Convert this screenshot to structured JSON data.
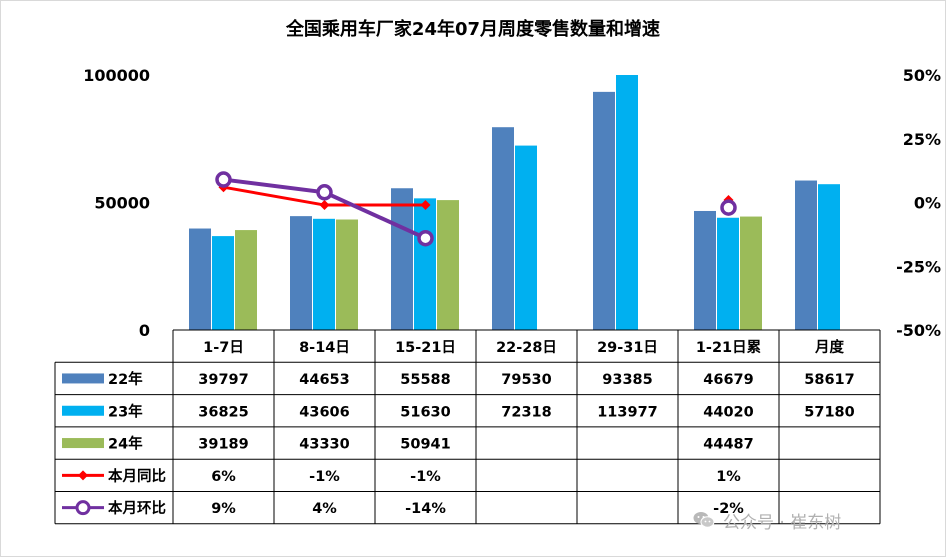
{
  "chart_data": {
    "type": "bar",
    "title": "全国乘用车厂家24年07月周度零售数量和增速",
    "categories": [
      "1-7日",
      "8-14日",
      "15-21日",
      "22-28日",
      "29-31日",
      "1-21日累",
      "月度"
    ],
    "series": [
      {
        "name": "22年",
        "kind": "bar",
        "color": "#4f81bd",
        "values": [
          39797,
          44653,
          55588,
          79530,
          93385,
          46679,
          58617
        ],
        "labels": [
          "39797",
          "44653",
          "55588",
          "79530",
          "93385",
          "46679",
          "58617"
        ]
      },
      {
        "name": "23年",
        "kind": "bar",
        "color": "#00b0f0",
        "values": [
          36825,
          43606,
          51630,
          72318,
          113977,
          44020,
          57180
        ],
        "labels": [
          "36825",
          "43606",
          "51630",
          "72318",
          "113977",
          "44020",
          "57180"
        ]
      },
      {
        "name": "24年",
        "kind": "bar",
        "color": "#9bbb59",
        "values": [
          39189,
          43330,
          50941,
          null,
          null,
          44487,
          null
        ],
        "labels": [
          "39189",
          "43330",
          "50941",
          "",
          "",
          "44487",
          ""
        ]
      },
      {
        "name": "本月同比",
        "kind": "line",
        "axis": "right",
        "color": "#ff0000",
        "marker": "diamond",
        "values": [
          6,
          -1,
          -1,
          null,
          null,
          1,
          null
        ],
        "labels": [
          "6%",
          "-1%",
          "-1%",
          "",
          "",
          "1%",
          ""
        ]
      },
      {
        "name": "本月环比",
        "kind": "line",
        "axis": "right",
        "color": "#7030a0",
        "marker": "circle",
        "values": [
          9,
          4,
          -14,
          null,
          null,
          -2,
          null
        ],
        "labels": [
          "9%",
          "4%",
          "-14%",
          "",
          "",
          "-2%",
          ""
        ]
      }
    ],
    "y_left": {
      "ylim": [
        0,
        100000
      ],
      "ticks": [
        "0",
        "50000",
        "100000"
      ]
    },
    "y_right": {
      "ylim": [
        -50,
        50
      ],
      "unit": "%",
      "ticks": [
        "-50%",
        "-25%",
        "0%",
        "25%",
        "50%"
      ]
    },
    "legend": "data-table",
    "grid": false
  },
  "watermark": {
    "text": "公众号 · 崔东树"
  }
}
